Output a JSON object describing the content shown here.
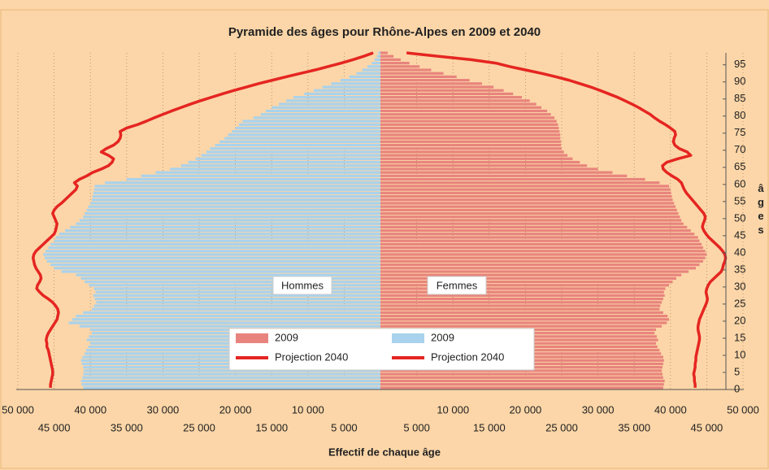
{
  "chart_data": {
    "type": "pyramid",
    "title": "Pyramide des âges pour Rhône-Alpes en 2009 et 2040",
    "xlabel": "Effectif de chaque âge",
    "ylabel": "âges",
    "xlim": [
      0,
      50000
    ],
    "xticks": [
      {
        "value": 5000,
        "label": "5 000"
      },
      {
        "value": 10000,
        "label": "10 000"
      },
      {
        "value": 15000,
        "label": "15 000"
      },
      {
        "value": 20000,
        "label": "20 000"
      },
      {
        "value": 25000,
        "label": "25 000"
      },
      {
        "value": 30000,
        "label": "30 000"
      },
      {
        "value": 35000,
        "label": "35 000"
      },
      {
        "value": 40000,
        "label": "40 000"
      },
      {
        "value": 45000,
        "label": "45 000"
      },
      {
        "value": 50000,
        "label": "50 000"
      }
    ],
    "ylim": [
      0,
      98.5
    ],
    "yticks": [
      0,
      5,
      10,
      15,
      20,
      25,
      30,
      35,
      40,
      45,
      50,
      55,
      60,
      65,
      70,
      75,
      80,
      85,
      90,
      95
    ],
    "grid": true,
    "y": [
      0,
      1,
      2,
      3,
      4,
      5,
      6,
      7,
      8,
      9,
      10,
      11,
      12,
      13,
      14,
      15,
      16,
      17,
      18,
      19,
      20,
      21,
      22,
      23,
      24,
      25,
      26,
      27,
      28,
      29,
      30,
      31,
      32,
      33,
      34,
      35,
      36,
      37,
      38,
      39,
      40,
      41,
      42,
      43,
      44,
      45,
      46,
      47,
      48,
      49,
      50,
      51,
      52,
      53,
      54,
      55,
      56,
      57,
      58,
      59,
      60,
      61,
      62,
      63,
      64,
      65,
      66,
      67,
      68,
      69,
      70,
      71,
      72,
      73,
      74,
      75,
      76,
      77,
      78,
      79,
      80,
      81,
      82,
      83,
      84,
      85,
      86,
      87,
      88,
      89,
      90,
      91,
      92,
      93,
      94,
      95,
      96,
      97,
      98
    ],
    "annotations": [
      {
        "text": "Hommes",
        "side": "left"
      },
      {
        "text": "Femmes",
        "side": "right"
      }
    ],
    "series": [
      {
        "name": "2009",
        "color": "#e8847d",
        "kind": "bar",
        "side": "right",
        "values": [
          39000,
          39100,
          39200,
          39000,
          38900,
          38800,
          38900,
          39000,
          39100,
          39000,
          38700,
          38500,
          38200,
          38000,
          38300,
          38100,
          37800,
          38000,
          38800,
          39500,
          39800,
          39600,
          39000,
          38500,
          38600,
          38800,
          39000,
          39200,
          39100,
          39300,
          39800,
          40300,
          40800,
          41500,
          42500,
          43500,
          44000,
          44500,
          44800,
          45000,
          44800,
          44500,
          44300,
          44000,
          43800,
          43300,
          42800,
          42300,
          41800,
          41500,
          41300,
          41100,
          40900,
          40700,
          40500,
          40300,
          40200,
          40100,
          40000,
          39800,
          38500,
          36500,
          34000,
          32000,
          30000,
          28500,
          27500,
          26500,
          25800,
          25300,
          25000,
          24900,
          24900,
          24800,
          24800,
          24700,
          24600,
          24500,
          24300,
          24000,
          23500,
          23000,
          22200,
          21500,
          20600,
          19500,
          18300,
          17000,
          15600,
          14000,
          12300,
          10500,
          8700,
          7000,
          5400,
          4000,
          2800,
          1800,
          1000
        ]
      },
      {
        "name": "Projection 2040",
        "color": "#e52521",
        "kind": "line",
        "side": "right",
        "values": [
          43400,
          43400,
          43300,
          43300,
          43200,
          43300,
          43400,
          43400,
          43500,
          43500,
          43600,
          43700,
          43800,
          43900,
          44000,
          44000,
          43900,
          43800,
          43800,
          43900,
          44000,
          44200,
          44400,
          44600,
          44800,
          45000,
          45100,
          45000,
          44900,
          45000,
          45200,
          45500,
          46000,
          46500,
          47000,
          47200,
          47300,
          47500,
          47600,
          47500,
          47200,
          46800,
          46300,
          45800,
          45300,
          44900,
          44600,
          44400,
          44500,
          44700,
          44800,
          44600,
          44200,
          43800,
          43400,
          43000,
          42600,
          42200,
          41900,
          41700,
          41500,
          41000,
          40200,
          39500,
          39000,
          38900,
          39500,
          41000,
          42800,
          42300,
          41200,
          40600,
          40400,
          40500,
          40700,
          40600,
          40000,
          39300,
          38500,
          37800,
          37200,
          36400,
          35600,
          34700,
          33700,
          32700,
          31500,
          30300,
          29000,
          27500,
          26000,
          24200,
          22200,
          20000,
          17800,
          15900,
          12500,
          8000,
          3600
        ]
      },
      {
        "name": "2009",
        "color": "#a9d2ec",
        "kind": "bar",
        "side": "left",
        "values": [
          41000,
          41200,
          41300,
          41100,
          41000,
          40900,
          41000,
          41200,
          41300,
          41100,
          40800,
          40600,
          40300,
          40000,
          40500,
          40200,
          39800,
          40000,
          41500,
          43000,
          42500,
          42000,
          41000,
          39800,
          39500,
          39200,
          39400,
          39600,
          39300,
          39500,
          40200,
          40800,
          41300,
          42000,
          44000,
          45000,
          45500,
          46000,
          46300,
          46500,
          46200,
          45800,
          45500,
          45000,
          44800,
          44300,
          43500,
          42800,
          42000,
          41500,
          41000,
          40800,
          40500,
          40300,
          40000,
          39800,
          39700,
          39600,
          39500,
          39400,
          38000,
          35000,
          33000,
          31000,
          29000,
          27500,
          26500,
          25500,
          24700,
          24000,
          23500,
          22800,
          22200,
          21500,
          21000,
          20500,
          20000,
          19500,
          19000,
          17500,
          16500,
          15800,
          15000,
          14000,
          13000,
          12000,
          10500,
          9200,
          8000,
          6800,
          5500,
          4300,
          3300,
          2500,
          1800,
          1200,
          800,
          500,
          300
        ]
      },
      {
        "name": "Projection 2040",
        "color": "#e52521",
        "kind": "line",
        "side": "left",
        "values": [
          45500,
          45500,
          45400,
          45300,
          45200,
          45200,
          45300,
          45400,
          45500,
          45600,
          45700,
          45800,
          46000,
          46000,
          46100,
          46000,
          45800,
          45500,
          45200,
          44900,
          44600,
          44500,
          44400,
          44500,
          44800,
          45200,
          45800,
          46500,
          47000,
          47400,
          47300,
          47000,
          46800,
          46900,
          47200,
          47500,
          47700,
          47800,
          47900,
          47800,
          47500,
          47000,
          46500,
          46000,
          45500,
          45000,
          44800,
          44700,
          44600,
          44800,
          45000,
          45200,
          45000,
          44600,
          44000,
          43500,
          43000,
          42500,
          42000,
          41800,
          42200,
          41500,
          40500,
          39700,
          38500,
          37500,
          37000,
          36800,
          37500,
          38500,
          37800,
          36800,
          36200,
          35900,
          35800,
          35900,
          35000,
          33500,
          32300,
          31200,
          30000,
          28800,
          27500,
          26200,
          24800,
          23300,
          21800,
          20200,
          18500,
          16800,
          14900,
          13000,
          11000,
          9000,
          7200,
          5400,
          3800,
          2300,
          1000
        ]
      }
    ]
  }
}
